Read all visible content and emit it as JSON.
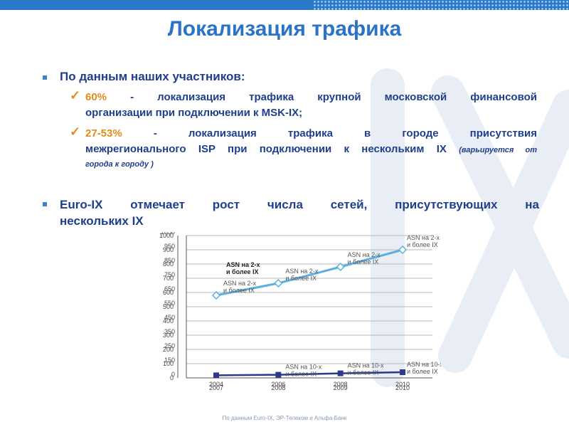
{
  "title": "Локализация трафика",
  "intro": "По данным наших участников:",
  "point1": {
    "percent": "60%",
    "line1": "- локализация трафика крупной московской финансовой",
    "line2": "организации при подключении к MSK-IX;"
  },
  "point2": {
    "percent": "27-53%",
    "line1": "- локализация трафика в городе присутствия",
    "line2": "межрегионального ISP при подключении к нескольким IX",
    "note": "(варьируется от",
    "line3": "города к городу )"
  },
  "euro_ix": {
    "line1": "Euro-IX отмечает рост числа сетей, присутствующих на",
    "line2": "нескольких IX"
  },
  "source": "По данным Euro-IX, ЭР-Телеком и Альфа-Банк",
  "chart_data": {
    "type": "line",
    "categories": [
      "2004",
      "2006",
      "2008",
      "2010"
    ],
    "x_tick_labels_overlay": [
      "2007",
      "2008",
      "2009",
      "2010"
    ],
    "ylim": [
      0,
      1000
    ],
    "y_ticks": [
      0,
      100,
      200,
      300,
      400,
      500,
      600,
      700,
      800,
      900,
      1000
    ],
    "y_tick_labels_left": [
      "0",
      "100",
      "200",
      "300",
      "400",
      "500",
      "600",
      "700",
      "800",
      "900",
      "1000"
    ],
    "y_tick_labels_right": [
      "0",
      "150",
      "250",
      "350",
      "450",
      "550",
      "650",
      "750",
      "850",
      "950",
      "1050"
    ],
    "grid": true,
    "series": [
      {
        "name": "ASN на 2-х и более IX",
        "values": [
          580,
          665,
          780,
          900
        ],
        "color": "#5ab0e0",
        "point_labels": [
          "ASN на 2-х и более IX",
          "ASN на 2-х и более IX",
          "ASN на 2-х и более IX",
          "ASN на 2-х и более IX"
        ]
      },
      {
        "name": "ASN на 10-х и более IX",
        "values": [
          18,
          22,
          32,
          40
        ],
        "color": "#2d3a8c",
        "point_labels": [
          "",
          "ASN на 10-х и более IX",
          "ASN на 10-х и более IX",
          "ASN на 10-х и более IX"
        ]
      }
    ],
    "colors": {
      "accent": "#e48b1a",
      "text": "#1f3f8c",
      "title": "#2a73c9"
    }
  }
}
